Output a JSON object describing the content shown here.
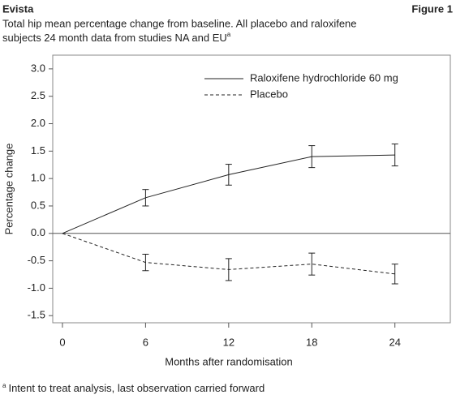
{
  "chart_data": {
    "type": "line",
    "header": "Evista",
    "figure_label": "Figure 1",
    "subtitle": [
      "Total hip mean percentage change from baseline. All placebo and raloxifene",
      "subjects 24 month data from studies NA and EU"
    ],
    "subtitle_sup": "a",
    "x_label": "Months after randomisation",
    "y_label": "Percentage change",
    "footnote_marker": "a",
    "footnote": "Intent to treat analysis, last observation carried forward",
    "x": [
      0,
      6,
      12,
      18,
      24
    ],
    "series": [
      {
        "name": "Raloxifene hydrochloride 60 mg",
        "color": "#222222",
        "style": "solid",
        "values": [
          0,
          0.65,
          1.07,
          1.4,
          1.43
        ],
        "errors": [
          null,
          0.15,
          0.19,
          0.2,
          0.2
        ]
      },
      {
        "name": "Placebo",
        "color": "#222222",
        "style": "dashed",
        "values": [
          0,
          -0.53,
          -0.66,
          -0.56,
          -0.74
        ],
        "errors": [
          null,
          0.15,
          0.2,
          0.2,
          0.18
        ]
      }
    ],
    "xlim": [
      -0.7,
      28
    ],
    "ylim": [
      -1.63,
      3.25
    ],
    "xticks": [
      0,
      6,
      12,
      18,
      24
    ],
    "yticks": [
      {
        "value": 3,
        "label": "3.0"
      },
      {
        "value": 2.5,
        "label": "2.5"
      },
      {
        "value": 2,
        "label": "2.0"
      },
      {
        "value": 1.5,
        "label": "1.5"
      },
      {
        "value": 1,
        "label": "1.0"
      },
      {
        "value": 0.5,
        "label": "0.5"
      },
      {
        "value": 0,
        "label": "0.0"
      },
      {
        "value": -0.5,
        "label": "-0.5"
      },
      {
        "value": -1,
        "label": "-1.0"
      },
      {
        "value": -1.5,
        "label": "-1.5"
      }
    ],
    "reference_line": 0,
    "legend": "top-right"
  }
}
